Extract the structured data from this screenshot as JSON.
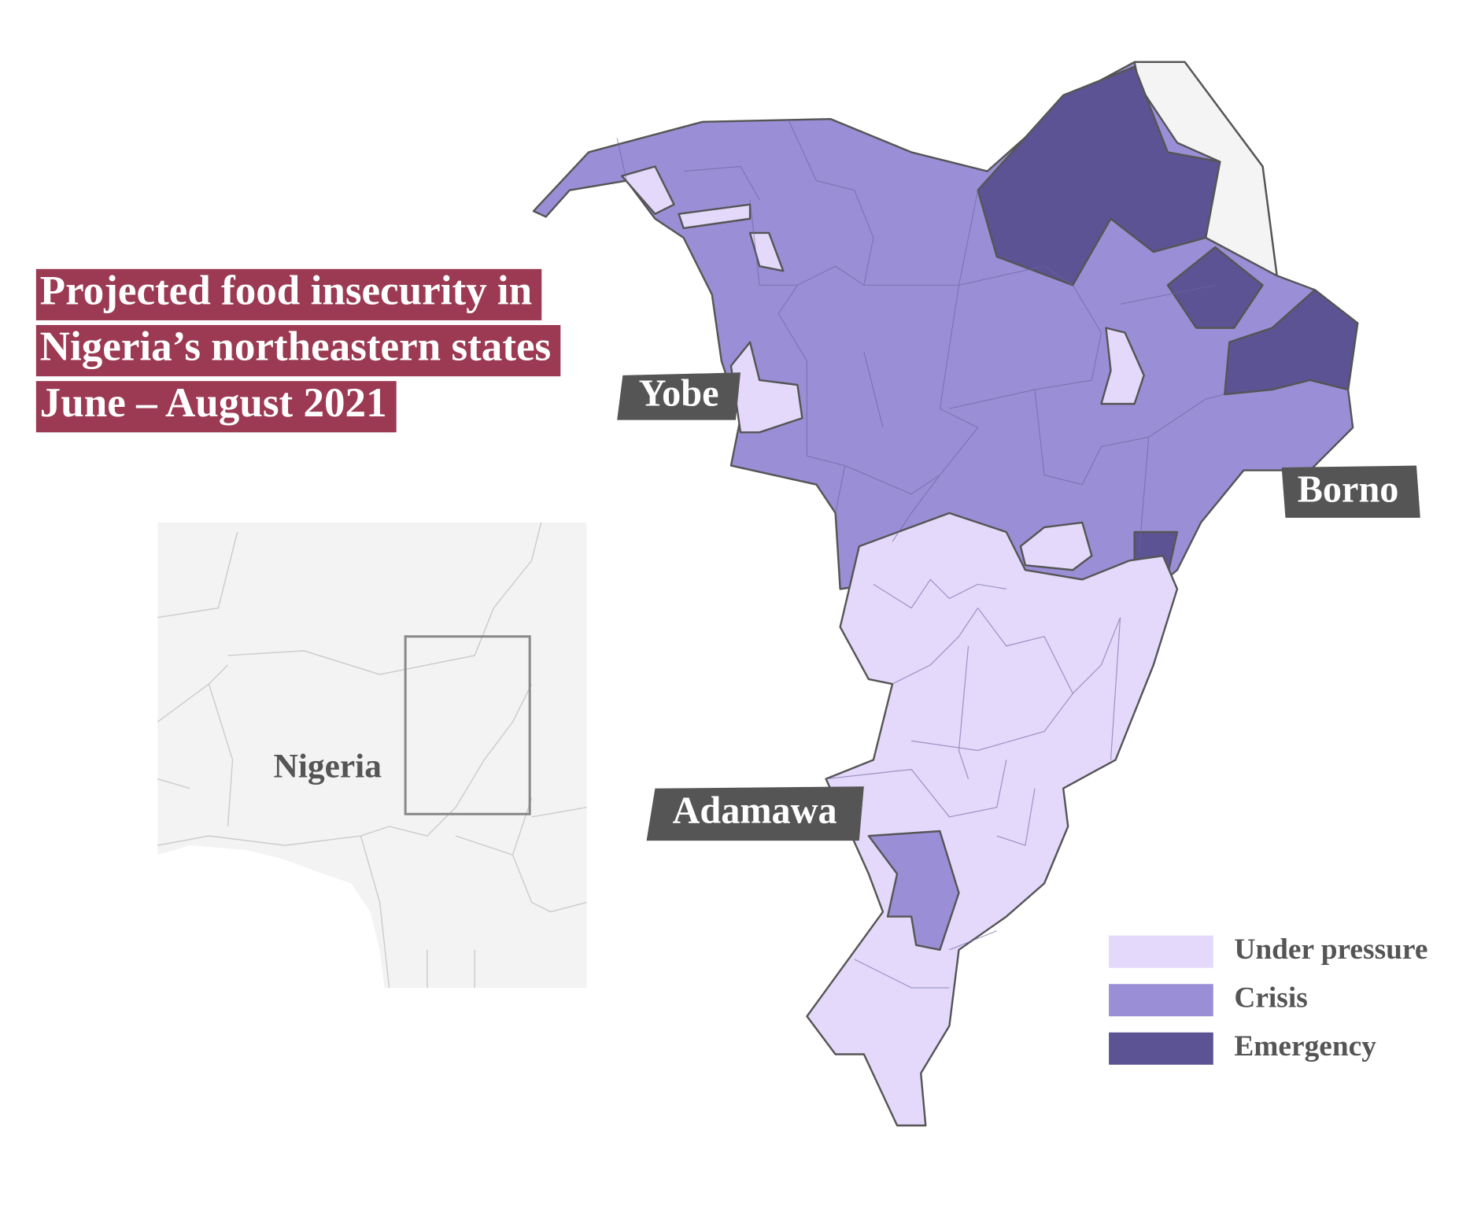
{
  "title_lines": [
    "Projected food insecurity in",
    "Nigeria’s northeastern states",
    "June – August 2021"
  ],
  "inset": {
    "label": "Nigeria"
  },
  "states": [
    "Yobe",
    "Borno",
    "Adamawa"
  ],
  "legend": [
    {
      "label": "Under pressure",
      "color": "#e4d9fb"
    },
    {
      "label": "Crisis",
      "color": "#9a8fd6"
    },
    {
      "label": "Emergency",
      "color": "#5c5395"
    }
  ]
}
